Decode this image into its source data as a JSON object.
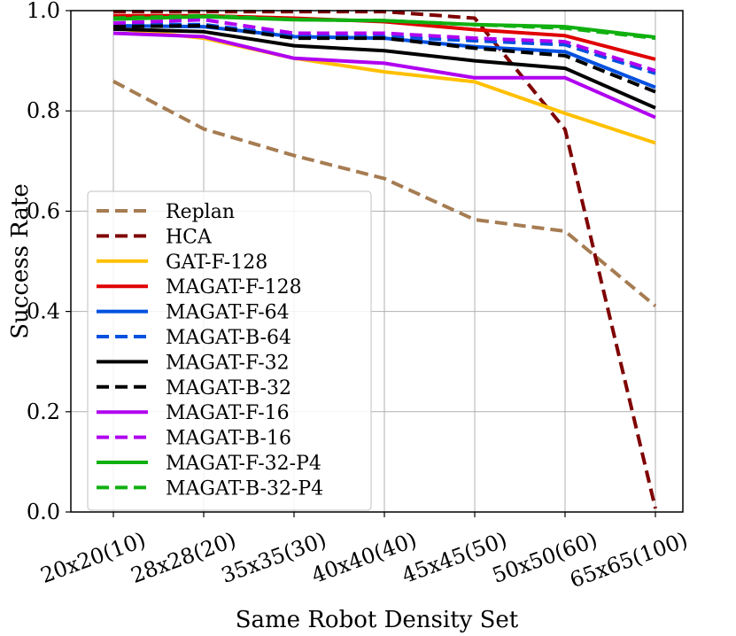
{
  "chart_data": {
    "type": "line",
    "title": "",
    "xlabel": "Same Robot Density Set",
    "ylabel": "Success Rate",
    "ylim": [
      0.0,
      1.0
    ],
    "yticks": [
      "0.0",
      "0.2",
      "0.4",
      "0.6",
      "0.8",
      "1.0"
    ],
    "grid": true,
    "legend_location": "lower-left",
    "categories": [
      "20x20(10)",
      "28x28(20)",
      "35x35(30)",
      "40x40(40)",
      "45x45(50)",
      "50x50(60)",
      "65x65(100)"
    ],
    "series": [
      {
        "name": "Replan",
        "color": "#A67C52",
        "dash": "dashed",
        "values": [
          0.859,
          0.764,
          0.711,
          0.665,
          0.583,
          0.56,
          0.411
        ]
      },
      {
        "name": "HCA",
        "color": "#7F0000",
        "dash": "dashed",
        "values": [
          0.998,
          0.998,
          0.998,
          0.998,
          0.985,
          0.763,
          0.007
        ]
      },
      {
        "name": "GAT-F-128",
        "color": "#FFC000",
        "dash": "solid",
        "values": [
          0.965,
          0.945,
          0.905,
          0.878,
          0.858,
          0.795,
          0.736
        ]
      },
      {
        "name": "MAGAT-F-128",
        "color": "#E00000",
        "dash": "solid",
        "values": [
          0.99,
          0.99,
          0.985,
          0.978,
          0.962,
          0.95,
          0.903
        ]
      },
      {
        "name": "MAGAT-F-64",
        "color": "#0050E0",
        "dash": "solid",
        "values": [
          0.97,
          0.968,
          0.948,
          0.945,
          0.928,
          0.918,
          0.847
        ]
      },
      {
        "name": "MAGAT-B-64",
        "color": "#0050E0",
        "dash": "dashed",
        "values": [
          0.972,
          0.972,
          0.95,
          0.948,
          0.94,
          0.932,
          0.875
        ]
      },
      {
        "name": "MAGAT-F-32",
        "color": "#000000",
        "dash": "solid",
        "values": [
          0.963,
          0.958,
          0.93,
          0.92,
          0.9,
          0.885,
          0.806
        ]
      },
      {
        "name": "MAGAT-B-32",
        "color": "#000000",
        "dash": "dashed",
        "values": [
          0.968,
          0.97,
          0.945,
          0.945,
          0.925,
          0.91,
          0.838
        ]
      },
      {
        "name": "MAGAT-F-16",
        "color": "#B000F0",
        "dash": "solid",
        "values": [
          0.955,
          0.948,
          0.905,
          0.895,
          0.866,
          0.866,
          0.787
        ]
      },
      {
        "name": "MAGAT-B-16",
        "color": "#B000F0",
        "dash": "dashed",
        "values": [
          0.975,
          0.982,
          0.955,
          0.955,
          0.945,
          0.938,
          0.88
        ]
      },
      {
        "name": "MAGAT-F-32-P4",
        "color": "#10B010",
        "dash": "solid",
        "values": [
          0.983,
          0.988,
          0.982,
          0.98,
          0.972,
          0.968,
          0.947
        ]
      },
      {
        "name": "MAGAT-B-32-P4",
        "color": "#10B010",
        "dash": "dashed",
        "values": [
          0.985,
          0.99,
          0.982,
          0.98,
          0.972,
          0.965,
          0.945
        ]
      }
    ]
  }
}
